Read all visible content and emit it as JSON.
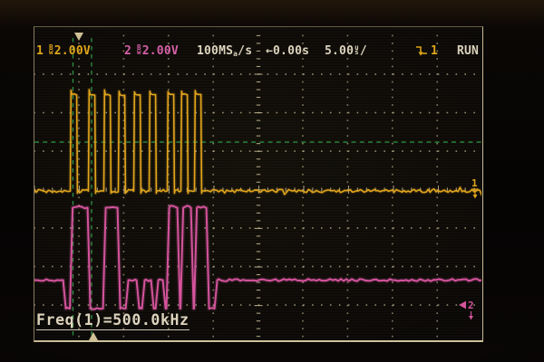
{
  "status_bar": {
    "ch1_label": "1",
    "ch1_bw_top": "B",
    "ch1_bw_bot": "w",
    "ch1_value": "2.00V",
    "ch2_label": "2",
    "ch2_bw_top": "B",
    "ch2_bw_bot": "w",
    "ch2_value": "2.00V",
    "sample_rate_main": "100MS",
    "sample_rate_sub": "a",
    "sample_rate_tail": "/s",
    "delay_arrow": "←",
    "delay_value": "0.00s",
    "timebase_value": "5.00",
    "timebase_unit_top": "u",
    "timebase_unit_bot": "s",
    "timebase_tail": "/",
    "trigger_channel": "1",
    "run_state": "RUN"
  },
  "measurement_label": "Freq(1)=500.0kHz",
  "markers": {
    "trigger_position_top": "down-triangle",
    "measure_position_bottom": "up-triangle",
    "ch1_right_label": "1",
    "ch2_right_label": "2"
  },
  "colors": {
    "ch1": "#e2a51c",
    "ch2": "#d4549c",
    "text": "#dcd3bd",
    "grid": "#c9bb97",
    "green": "#2fa24a",
    "marker": "#cfc096"
  },
  "chart_data": {
    "type": "line",
    "title": "Oscilloscope traces: CH1 clock burst, CH2 data signal",
    "x_axis": {
      "timebase": "5.00us/div",
      "divisions": 10,
      "delay": "0.00s",
      "sample_rate": "100MSa/s"
    },
    "y_axis": {
      "ch1_scale": "2.00V/div",
      "ch2_scale": "2.00V/div"
    },
    "trigger_level_y": 157,
    "measure_cursors_x": [
      80.5,
      101
    ],
    "trigger_marker_x": 87,
    "bottom_marker_x": 103,
    "freq_measured": "500.0kHz",
    "series": [
      {
        "name": "ch1",
        "kind": "pulse_burst",
        "baseline_y": 211,
        "pulse_top_y": 103.5,
        "overshoot_y": 98.5,
        "pulse_width": 8,
        "pulse_edges_x": [
          78,
          98,
          115,
          131,
          148,
          165,
          185,
          200,
          215
        ],
        "x_range": [
          38,
          532
        ]
      },
      {
        "name": "ch2",
        "kind": "segments",
        "levels": {
          "mid": 309.5,
          "low": 341,
          "high": 229.5
        },
        "segments": [
          [
            "mid",
            38,
            70
          ],
          [
            "low",
            70,
            77.5
          ],
          [
            "high",
            77.5,
            97
          ],
          [
            "low",
            97,
            114
          ],
          [
            "high",
            114,
            130
          ],
          [
            "low",
            130,
            139
          ],
          [
            "mid",
            139,
            151
          ],
          [
            "low",
            151,
            157
          ],
          [
            "mid",
            157,
            167
          ],
          [
            "low",
            167,
            172
          ],
          [
            "mid",
            172,
            180
          ],
          [
            "low",
            180,
            184
          ],
          [
            "high",
            184,
            196
          ],
          [
            "low",
            196,
            199.5
          ],
          [
            "high",
            199.5,
            211
          ],
          [
            "low",
            211,
            214.5
          ],
          [
            "high",
            214.5,
            228
          ],
          [
            "low",
            228,
            237
          ],
          [
            "mid",
            237,
            532
          ]
        ]
      }
    ]
  }
}
